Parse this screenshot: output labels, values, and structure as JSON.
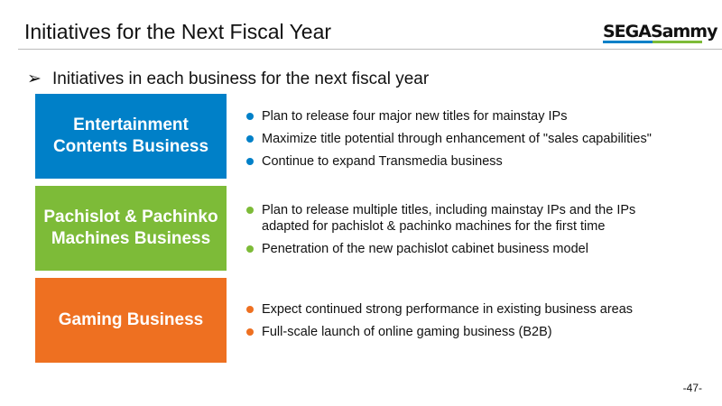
{
  "header": {
    "title": "Initiatives for the Next Fiscal Year",
    "logo_text": "SEGASammy"
  },
  "subtitle": {
    "bullet_icon": "arrow-bullet",
    "text": "Initiatives in each business for the next fiscal year"
  },
  "colors": {
    "entertainment": "#0080C8",
    "pachislot": "#7DBB38",
    "gaming": "#EE7021"
  },
  "sections": [
    {
      "label": "Entertainment Contents Business",
      "items": [
        "Plan to release four major new titles for mainstay IPs",
        "Maximize title potential through enhancement of \"sales capabilities\"",
        "Continue to expand Transmedia business"
      ]
    },
    {
      "label": "Pachislot & Pachinko Machines Business",
      "items": [
        "Plan to release multiple titles, including mainstay IPs and the IPs adapted for pachislot & pachinko machines for the first time",
        "Penetration of the new pachislot cabinet business model"
      ]
    },
    {
      "label": "Gaming Business",
      "items": [
        "Expect continued strong performance in existing business areas",
        "Full-scale launch of online gaming business (B2B)"
      ]
    }
  ],
  "footer": {
    "page": "-47-"
  }
}
